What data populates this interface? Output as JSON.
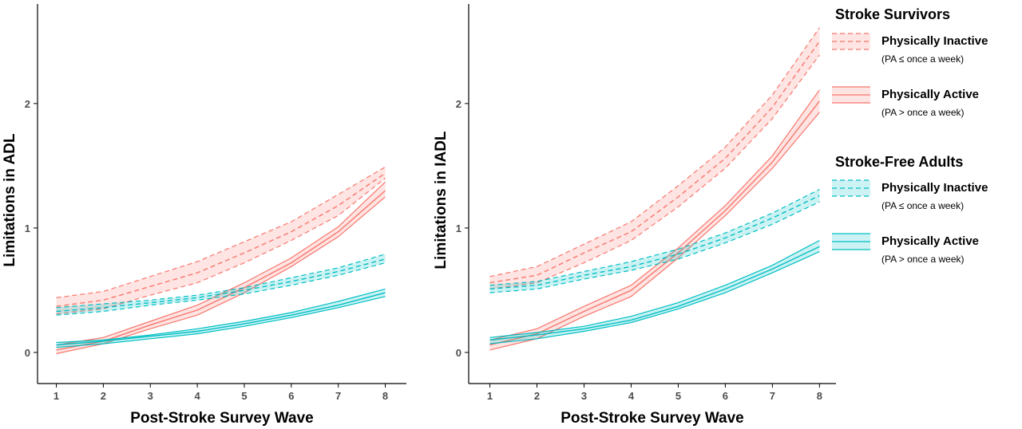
{
  "colors": {
    "stroke_survivors": "#F8766D",
    "stroke_survivors_fill": "#F8766D",
    "stroke_free": "#00BFC4",
    "stroke_free_fill": "#00BFC4",
    "axis": "#000000",
    "tick_text": "#4d4d4d"
  },
  "legend": {
    "position": "right",
    "groups": [
      {
        "title": "Stroke Survivors",
        "items": [
          {
            "label": "Physically Inactive",
            "sublabel": "(PA ≤ once a week)",
            "line": "dashed",
            "color_key": "stroke_survivors"
          },
          {
            "label": "Physically Active",
            "sublabel": "(PA > once a week)",
            "line": "solid",
            "color_key": "stroke_survivors"
          }
        ]
      },
      {
        "title": "Stroke-Free Adults",
        "items": [
          {
            "label": "Physically Inactive",
            "sublabel": "(PA ≤ once a week)",
            "line": "dashed",
            "color_key": "stroke_free"
          },
          {
            "label": "Physically Active",
            "sublabel": "(PA > once a week)",
            "line": "solid",
            "color_key": "stroke_free"
          }
        ]
      }
    ]
  },
  "chart_data": [
    {
      "type": "line",
      "xlabel": "Post-Stroke Survey Wave",
      "ylabel": "Limitations in ADL",
      "x": [
        1,
        2,
        3,
        4,
        5,
        6,
        7,
        8
      ],
      "xlim": [
        0.6,
        8.45
      ],
      "ylim": [
        -0.25,
        2.8
      ],
      "yticks": [
        0,
        1,
        2
      ],
      "grid": false,
      "series": [
        {
          "name": "Stroke Survivors – Physically Inactive",
          "color_key": "stroke_survivors",
          "line": "dashed",
          "values": [
            0.37,
            0.42,
            0.53,
            0.64,
            0.8,
            0.97,
            1.18,
            1.44
          ],
          "lower": [
            0.31,
            0.35,
            0.46,
            0.56,
            0.72,
            0.9,
            1.1,
            1.4
          ],
          "upper": [
            0.44,
            0.49,
            0.61,
            0.73,
            0.89,
            1.05,
            1.27,
            1.49
          ]
        },
        {
          "name": "Stroke Survivors – Physically Active",
          "color_key": "stroke_survivors",
          "line": "solid",
          "values": [
            0.02,
            0.09,
            0.22,
            0.34,
            0.52,
            0.72,
            0.97,
            1.3
          ],
          "lower": [
            -0.01,
            0.07,
            0.19,
            0.3,
            0.48,
            0.69,
            0.93,
            1.25
          ],
          "upper": [
            0.06,
            0.12,
            0.25,
            0.38,
            0.56,
            0.76,
            1.01,
            1.37
          ]
        },
        {
          "name": "Stroke-Free Adults – Physically Inactive",
          "color_key": "stroke_free",
          "line": "dashed",
          "values": [
            0.33,
            0.36,
            0.4,
            0.44,
            0.5,
            0.57,
            0.65,
            0.75
          ],
          "lower": [
            0.3,
            0.33,
            0.38,
            0.42,
            0.47,
            0.54,
            0.62,
            0.72
          ],
          "upper": [
            0.36,
            0.39,
            0.42,
            0.46,
            0.52,
            0.6,
            0.68,
            0.79
          ]
        },
        {
          "name": "Stroke-Free Adults – Physically Active",
          "color_key": "stroke_free",
          "line": "solid",
          "values": [
            0.06,
            0.09,
            0.13,
            0.17,
            0.23,
            0.3,
            0.38,
            0.48
          ],
          "lower": [
            0.04,
            0.07,
            0.11,
            0.15,
            0.21,
            0.28,
            0.36,
            0.45
          ],
          "upper": [
            0.08,
            0.1,
            0.14,
            0.19,
            0.25,
            0.32,
            0.41,
            0.51
          ]
        }
      ]
    },
    {
      "type": "line",
      "xlabel": "Post-Stroke Survey Wave",
      "ylabel": "Limitations in IADL",
      "x": [
        1,
        2,
        3,
        4,
        5,
        6,
        7,
        8
      ],
      "xlim": [
        0.55,
        8.35
      ],
      "ylim": [
        -0.25,
        2.8
      ],
      "yticks": [
        0,
        1,
        2
      ],
      "grid": false,
      "series": [
        {
          "name": "Stroke Survivors – Physically Inactive",
          "color_key": "stroke_survivors",
          "line": "dashed",
          "values": [
            0.56,
            0.62,
            0.8,
            0.97,
            1.25,
            1.56,
            1.97,
            2.5
          ],
          "lower": [
            0.51,
            0.56,
            0.72,
            0.9,
            1.17,
            1.48,
            1.88,
            2.39
          ],
          "upper": [
            0.61,
            0.69,
            0.87,
            1.05,
            1.34,
            1.65,
            2.07,
            2.61
          ]
        },
        {
          "name": "Stroke Survivors – Physically Active",
          "color_key": "stroke_survivors",
          "line": "solid",
          "values": [
            0.06,
            0.15,
            0.33,
            0.5,
            0.8,
            1.14,
            1.53,
            2.02
          ],
          "lower": [
            0.02,
            0.11,
            0.29,
            0.45,
            0.76,
            1.1,
            1.48,
            1.93
          ],
          "upper": [
            0.1,
            0.19,
            0.37,
            0.54,
            0.84,
            1.18,
            1.58,
            2.11
          ]
        },
        {
          "name": "Stroke-Free Adults – Physically Inactive",
          "color_key": "stroke_free",
          "line": "dashed",
          "values": [
            0.51,
            0.54,
            0.62,
            0.69,
            0.79,
            0.92,
            1.08,
            1.26
          ],
          "lower": [
            0.48,
            0.51,
            0.59,
            0.66,
            0.75,
            0.88,
            1.03,
            1.21
          ],
          "upper": [
            0.54,
            0.57,
            0.65,
            0.73,
            0.83,
            0.96,
            1.12,
            1.31
          ]
        },
        {
          "name": "Stroke-Free Adults – Physically Active",
          "color_key": "stroke_free",
          "line": "solid",
          "values": [
            0.1,
            0.14,
            0.19,
            0.26,
            0.37,
            0.51,
            0.67,
            0.85
          ],
          "lower": [
            0.07,
            0.11,
            0.17,
            0.24,
            0.35,
            0.48,
            0.64,
            0.81
          ],
          "upper": [
            0.12,
            0.16,
            0.21,
            0.29,
            0.4,
            0.54,
            0.7,
            0.9
          ]
        }
      ]
    }
  ]
}
